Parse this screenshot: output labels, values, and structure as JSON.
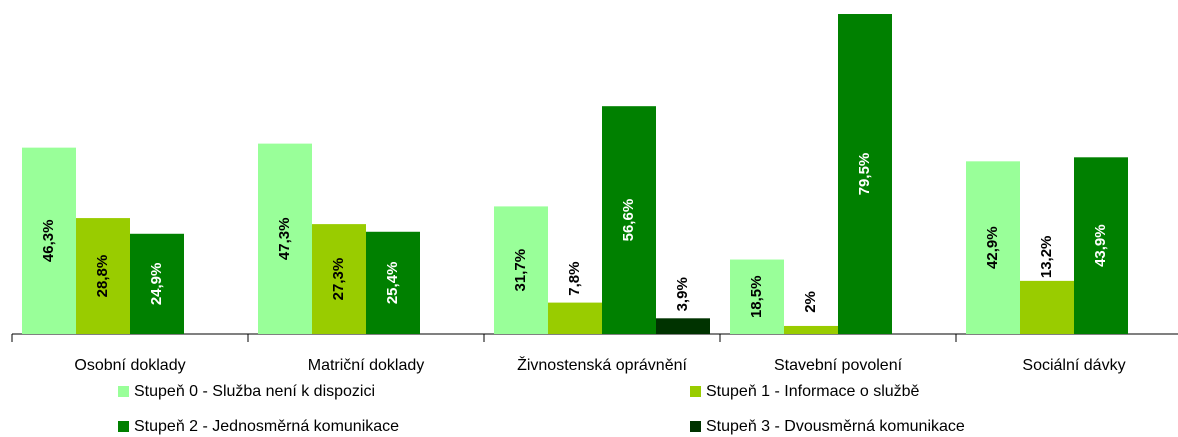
{
  "chart_data": {
    "type": "bar",
    "categories": [
      "Osobní doklady",
      "Matriční doklady",
      "Živnostenská oprávnění",
      "Stavební povolení",
      "Sociální dávky"
    ],
    "series": [
      {
        "name": "Stupeň 0 - Služba není k dispozici",
        "color": "#99ff99",
        "values": [
          46.3,
          47.3,
          31.7,
          18.5,
          42.9
        ],
        "value_labels": [
          "46,3%",
          "47,3%",
          "31,7%",
          "18,5%",
          "42,9%"
        ]
      },
      {
        "name": "Stupeň 1 - Informace o službě",
        "color": "#99cc00",
        "values": [
          28.8,
          27.3,
          7.8,
          2,
          13.2
        ],
        "value_labels": [
          "28,8%",
          "27,3%",
          "7,8%",
          "2%",
          "13,2%"
        ]
      },
      {
        "name": "Stupeň 2 - Jednosměrná komunikace",
        "color": "#008000",
        "values": [
          24.9,
          25.4,
          56.6,
          79.5,
          43.9
        ],
        "value_labels": [
          "24,9%",
          "25,4%",
          "56,6%",
          "79,5%",
          "43,9%"
        ]
      },
      {
        "name": "Stupeň 3 - Dvousměrná komunikace",
        "color": "#003300",
        "values": [
          null,
          null,
          3.9,
          null,
          null
        ],
        "value_labels": [
          null,
          null,
          "3,9%",
          null,
          null
        ]
      }
    ],
    "ylim": [
      0,
      80
    ]
  }
}
